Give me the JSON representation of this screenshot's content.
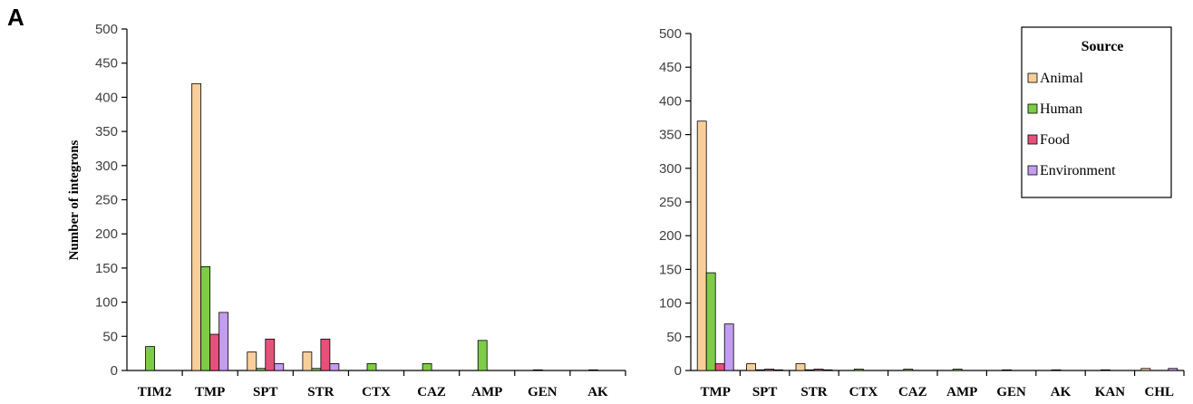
{
  "panel_label": "A",
  "colors": {
    "Animal": "#f8cf9b",
    "Human": "#7dcc48",
    "Food": "#e8507a",
    "Environment": "#c49cf0"
  },
  "legend": {
    "title": "Source",
    "entries": [
      "Animal",
      "Human",
      "Food",
      "Environment"
    ]
  },
  "chart_data": [
    {
      "type": "bar",
      "title": "",
      "xlabel": "",
      "ylabel": "Number of integrons",
      "ylim": [
        0,
        500
      ],
      "yticks": [
        "0",
        "50",
        "100",
        "150",
        "200",
        "250",
        "300",
        "350",
        "400",
        "450",
        "500"
      ],
      "categories": [
        "TIM2",
        "TMP",
        "SPT",
        "STR",
        "CTX",
        "CAZ",
        "AMP",
        "GEN",
        "AK"
      ],
      "series": [
        {
          "name": "Animal",
          "values": [
            0,
            420,
            27,
            27,
            0,
            0,
            0,
            0,
            0
          ]
        },
        {
          "name": "Human",
          "values": [
            35,
            152,
            3,
            3,
            10,
            10,
            44,
            1,
            1
          ]
        },
        {
          "name": "Food",
          "values": [
            0,
            53,
            46,
            46,
            0,
            0,
            0,
            0,
            0
          ]
        },
        {
          "name": "Environment",
          "values": [
            0,
            85,
            10,
            10,
            0,
            0,
            0,
            0,
            0
          ]
        }
      ]
    },
    {
      "type": "bar",
      "title": "",
      "xlabel": "",
      "ylabel": "",
      "ylim": [
        0,
        500
      ],
      "yticks": [
        "0",
        "50",
        "100",
        "150",
        "200",
        "250",
        "300",
        "350",
        "400",
        "450",
        "500"
      ],
      "categories": [
        "TMP",
        "SPT",
        "STR",
        "CTX",
        "CAZ",
        "AMP",
        "GEN",
        "AK",
        "KAN",
        "CHL"
      ],
      "series": [
        {
          "name": "Animal",
          "values": [
            370,
            10,
            10,
            0,
            0,
            0,
            0,
            0,
            0,
            3
          ]
        },
        {
          "name": "Human",
          "values": [
            145,
            1,
            1,
            2,
            2,
            2,
            1,
            1,
            1,
            0
          ]
        },
        {
          "name": "Food",
          "values": [
            10,
            2,
            2,
            0,
            0,
            0,
            0,
            0,
            0,
            0
          ]
        },
        {
          "name": "Environment",
          "values": [
            69,
            1,
            1,
            0,
            0,
            0,
            0,
            0,
            0,
            3
          ]
        }
      ]
    }
  ]
}
